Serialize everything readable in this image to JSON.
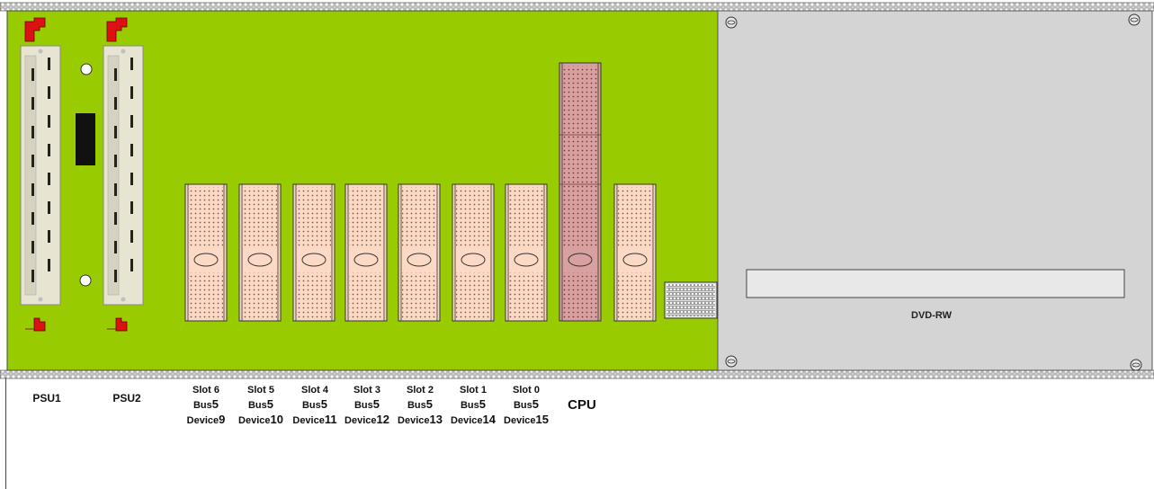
{
  "board": {
    "color": "#99cc00",
    "rail_color": "#cfcfcf"
  },
  "psus": [
    {
      "label": "PSU1"
    },
    {
      "label": "PSU2"
    }
  ],
  "slots": [
    {
      "slot": "Slot 6",
      "bus_prefix": "Bus",
      "bus_num": "5",
      "dev_prefix": "Device",
      "dev_num": "9"
    },
    {
      "slot": "Slot 5",
      "bus_prefix": "Bus",
      "bus_num": "5",
      "dev_prefix": "Device",
      "dev_num": "10"
    },
    {
      "slot": "Slot 4",
      "bus_prefix": "Bus",
      "bus_num": "5",
      "dev_prefix": "Device",
      "dev_num": "11"
    },
    {
      "slot": "Slot 3",
      "bus_prefix": "Bus",
      "bus_num": "5",
      "dev_prefix": "Device",
      "dev_num": "12"
    },
    {
      "slot": "Slot 2",
      "bus_prefix": "Bus",
      "bus_num": "5",
      "dev_prefix": "Device",
      "dev_num": "13"
    },
    {
      "slot": "Slot 1",
      "bus_prefix": "Bus",
      "bus_num": "5",
      "dev_prefix": "Device",
      "dev_num": "14"
    },
    {
      "slot": "Slot 0",
      "bus_prefix": "Bus",
      "bus_num": "5",
      "dev_prefix": "Device",
      "dev_num": "15"
    }
  ],
  "cpu": {
    "label": "CPU",
    "color": "#d9a0a0"
  },
  "slot_color": "#fbd9c4",
  "dvd": {
    "label": "DVD-RW",
    "panel_color": "#d4d4d4"
  }
}
